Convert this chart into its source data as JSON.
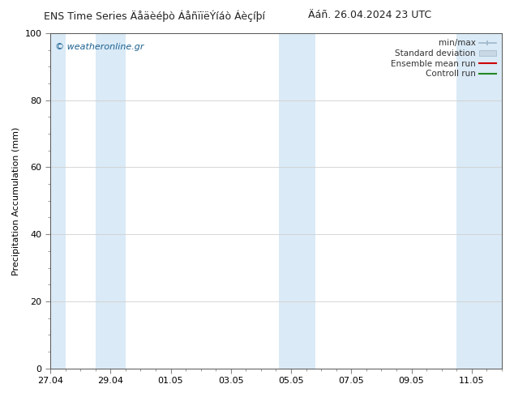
{
  "title_left": "ENS Time Series Äåäèéþò ÁåñïïëÝíáò Áèçíþí",
  "title_right": "Äáñ. 26.04.2024 23 UTC",
  "ylabel": "Precipitation Accumulation (mm)",
  "ylim": [
    0,
    100
  ],
  "yticks": [
    0,
    20,
    40,
    60,
    80,
    100
  ],
  "xlim": [
    0,
    15.0
  ],
  "xtick_labels": [
    "27.04",
    "29.04",
    "01.05",
    "03.05",
    "05.05",
    "07.05",
    "09.05",
    "11.05"
  ],
  "xtick_positions": [
    0,
    2,
    4,
    6,
    8,
    10,
    12,
    14
  ],
  "watermark": "© weatheronline.gr",
  "bg_color": "#ffffff",
  "plot_bg_color": "#ffffff",
  "band_color": "#daeaf6",
  "band_positions": [
    [
      0.0,
      0.5
    ],
    [
      1.5,
      2.5
    ],
    [
      7.6,
      8.8
    ],
    [
      13.5,
      15.0
    ]
  ],
  "title_fontsize": 9,
  "axis_fontsize": 8,
  "tick_fontsize": 8,
  "watermark_color": "#1a6090",
  "grid_color": "#d0d0d0",
  "spine_color": "#555555",
  "legend_fontsize": 7.5,
  "legend_text_color": "#333333"
}
